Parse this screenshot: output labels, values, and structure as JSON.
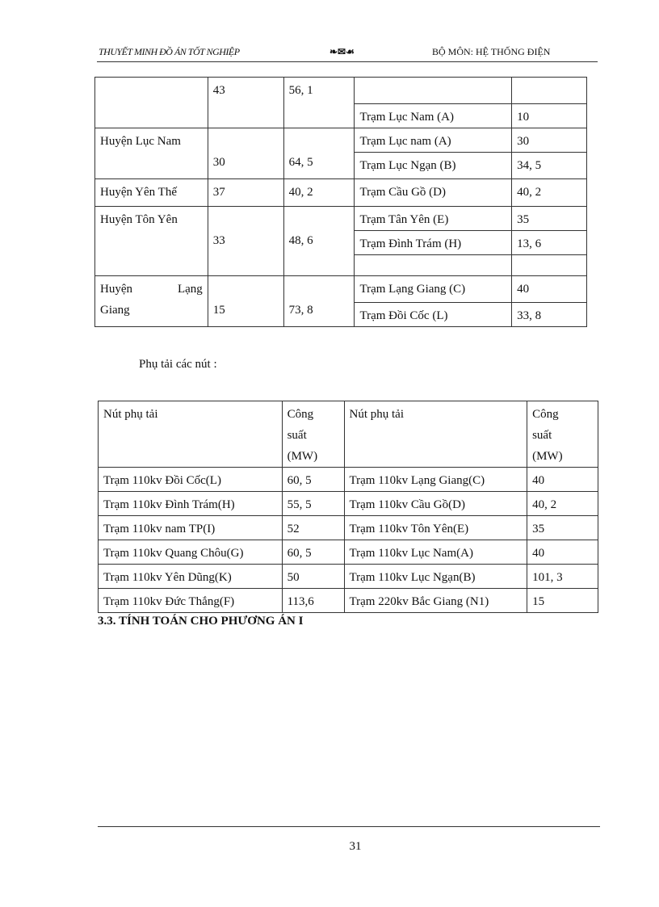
{
  "header": {
    "left": "THUYẾT MINH ĐỒ ÁN TỐT NGHIỆP",
    "ornament": "❧✉☙",
    "right": "BỘ MÔN: HỆ THỐNG ĐIỆN"
  },
  "table1": {
    "r1": {
      "c2": "43",
      "c3": "56, 1"
    },
    "r2": {
      "c4": "Trạm Lục Nam (A)",
      "c5": "10"
    },
    "r3": {
      "c1": "Huyện Lục Nam",
      "c2": "30",
      "c3": "64, 5",
      "c4": "Trạm Lục nam (A)",
      "c5": "30"
    },
    "r4": {
      "c4": "Trạm Lục Ngạn (B)",
      "c5": "34, 5"
    },
    "r5": {
      "c1": "Huyện Yên Thế",
      "c2": "37",
      "c3": "40, 2",
      "c4": "Trạm Cầu Gồ (D)",
      "c5": "40, 2"
    },
    "r6": {
      "c1": "Huyện Tôn Yên",
      "c2": "33",
      "c3": "48, 6",
      "c4": "Trạm Tân Yên (E)",
      "c5": "35"
    },
    "r7": {
      "c4": "Trạm Đình Trám (H)",
      "c5": "13, 6"
    },
    "r9": {
      "c1a": "Huyện Lạng",
      "c1b": "Giang",
      "c2": "15",
      "c3": "73, 8",
      "c4": "Trạm Lạng Giang (C)",
      "c5": "40"
    },
    "r10": {
      "c4": "Trạm Đồi Cốc (L)",
      "c5": "33, 8"
    }
  },
  "intro": "Phụ tải các nút :",
  "table2": {
    "headers": {
      "name1": "Nút phụ tải",
      "power1a": "Công",
      "power1b": "suất",
      "power1c": "(MW)",
      "name2": "Nút phụ tải",
      "power2a": "Công",
      "power2b": "suất",
      "power2c": "(MW)"
    },
    "rows": [
      [
        "Trạm 110kv Đồi Cốc(L)",
        "60, 5",
        "Trạm 110kv Lạng Giang(C)",
        "40"
      ],
      [
        "Trạm 110kv Đình Trám(H)",
        "55, 5",
        "Trạm 110kv Cầu Gồ(D)",
        "40, 2"
      ],
      [
        "Trạm 110kv nam TP(I)",
        "52",
        "Trạm 110kv Tôn Yên(E)",
        "35"
      ],
      [
        "Trạm 110kv Quang Chôu(G)",
        "60, 5",
        "Trạm 110kv Lục Nam(A)",
        "40"
      ],
      [
        "Trạm 110kv Yên Dũng(K)",
        "50",
        "Trạm 110kv Lục Ngạn(B)",
        "101, 3"
      ],
      [
        "Trạm 110kv Đức Thắng(F)",
        "113,6",
        "Trạm 220kv Bắc Giang (N1)",
        "15"
      ]
    ]
  },
  "section_heading": "3.3. TÍNH TOÁN CHO PHƯƠNG ÁN I",
  "page_number": "31"
}
